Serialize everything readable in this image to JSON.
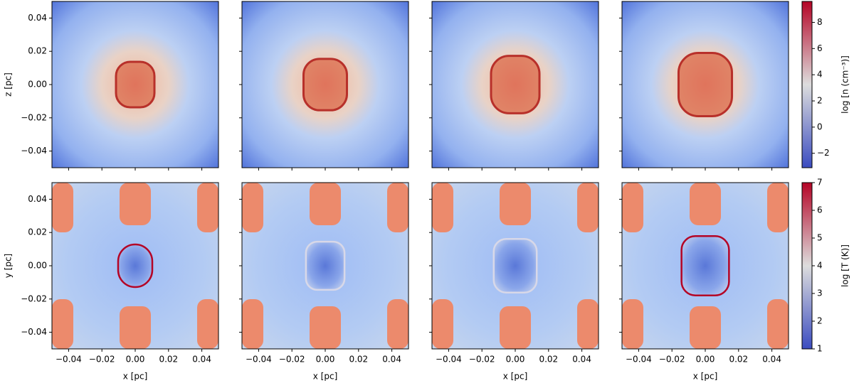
{
  "chart_data": [
    {
      "type": "heatmap",
      "ylabel": "z [pc]",
      "xlim": [
        -0.05,
        0.05
      ],
      "ylim": [
        -0.05,
        0.05
      ],
      "yticks": [
        {
          "value": -0.04,
          "label": "−0.04"
        },
        {
          "value": -0.02,
          "label": "−0.02"
        },
        {
          "value": 0,
          "label": "0.00"
        },
        {
          "value": 0.02,
          "label": "0.02"
        },
        {
          "value": 0.04,
          "label": "0.04"
        }
      ],
      "colorbar": {
        "label": "log [n (cm⁻³)]",
        "lim": [
          -3.1,
          9.6
        ],
        "ticks": [
          {
            "value": -2,
            "label": "−2"
          },
          0,
          2,
          4,
          6,
          8
        ],
        "colors": [
          "#3b4cc0",
          "#dddddd",
          "#b40426"
        ]
      }
    },
    {
      "type": "heatmap",
      "xlabel": "x [pc]",
      "ylabel": "y [pc]",
      "xlim": [
        -0.05,
        0.05
      ],
      "ylim": [
        -0.05,
        0.05
      ],
      "xticks": [
        {
          "value": -0.04,
          "label": "−0.04"
        },
        {
          "value": -0.02,
          "label": "−0.02"
        },
        {
          "value": 0,
          "label": "0.00"
        },
        {
          "value": 0.02,
          "label": "0.02"
        },
        {
          "value": 0.04,
          "label": "0.04"
        }
      ],
      "yticks": [
        {
          "value": -0.04,
          "label": "−0.04"
        },
        {
          "value": -0.02,
          "label": "−0.02"
        },
        {
          "value": 0,
          "label": "0.00"
        },
        {
          "value": 0.02,
          "label": "0.02"
        },
        {
          "value": 0.04,
          "label": "0.04"
        }
      ],
      "colorbar": {
        "label": "log [T (K)]",
        "lim": [
          1,
          7
        ],
        "ticks": [
          1,
          2,
          3,
          4,
          5,
          6,
          7
        ],
        "colors": [
          "#3b4cc0",
          "#dddddd",
          "#b40426"
        ]
      }
    }
  ]
}
